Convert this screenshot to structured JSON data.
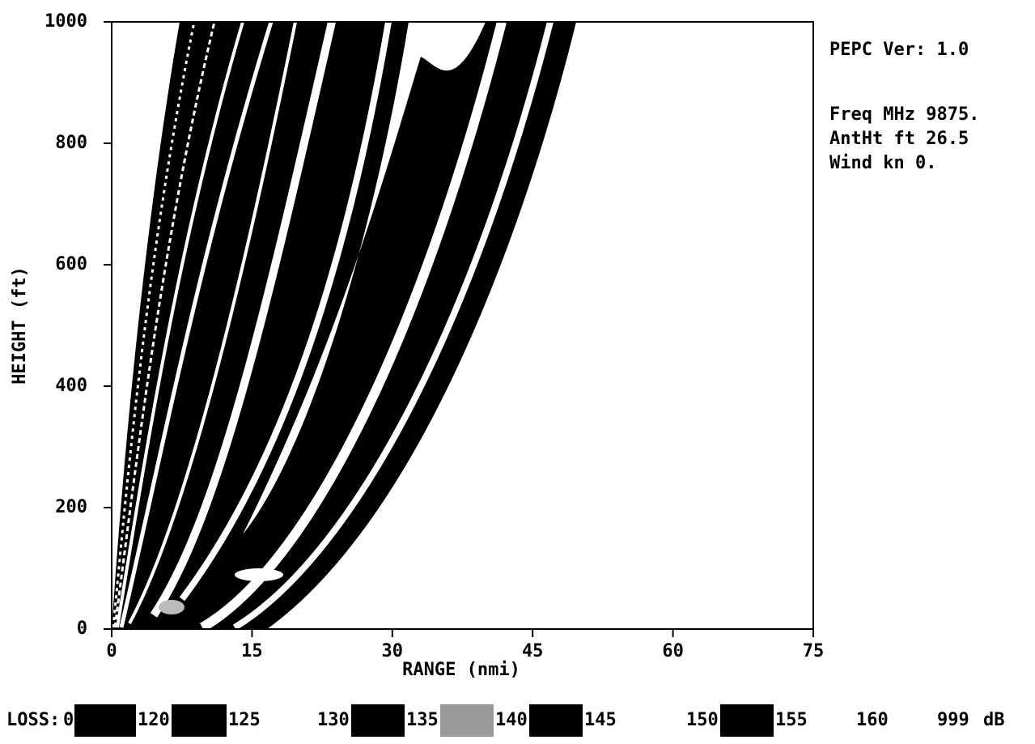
{
  "chart_data": {
    "type": "contour",
    "xlabel": "RANGE (nmi)",
    "ylabel": "HEIGHT (ft)",
    "xlim": [
      0,
      75
    ],
    "ylim": [
      0,
      1000
    ],
    "xticks": [
      0,
      15,
      30,
      45,
      60,
      75
    ],
    "yticks": [
      0,
      200,
      400,
      600,
      800,
      1000
    ],
    "info": [
      "PEPC Ver: 1.0",
      "Freq MHz  9875.",
      "AntHt ft  26.5",
      "Wind kn 0."
    ],
    "legend": {
      "title": "LOSS:",
      "levels": [
        0,
        120,
        125,
        130,
        135,
        140,
        145,
        150,
        155,
        160,
        999
      ],
      "colors": [
        "#000000",
        "#000000",
        "#ffffff",
        "#000000",
        "#9a9a9a",
        "#000000",
        "#ffffff",
        "#000000",
        "#ffffff",
        "#ffffff"
      ],
      "unit": "dB"
    }
  }
}
